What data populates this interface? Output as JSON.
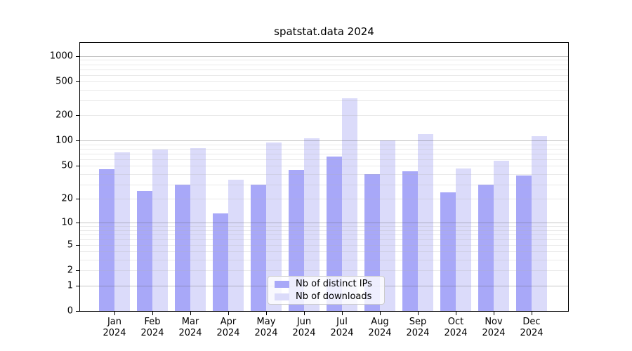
{
  "title": "spatstat.data 2024",
  "chart_data": {
    "type": "bar",
    "title": "spatstat.data 2024",
    "y_scale": "log1p",
    "grid": true,
    "legend_position": "lower center",
    "categories": [
      "Jan",
      "Feb",
      "Mar",
      "Apr",
      "May",
      "Jun",
      "Jul",
      "Aug",
      "Sep",
      "Oct",
      "Nov",
      "Dec"
    ],
    "year": "2024",
    "x_tick_labels": [
      "Jan 2024",
      "Feb 2024",
      "Mar 2024",
      "Apr 2024",
      "May 2024",
      "Jun 2024",
      "Jul 2024",
      "Aug 2024",
      "Sep 2024",
      "Oct 2024",
      "Nov 2024",
      "Dec 2024"
    ],
    "series": [
      {
        "name": "Nb of distinct IPs",
        "color": "#a8a8f8",
        "values": [
          46,
          25,
          30,
          13,
          30,
          45,
          65,
          40,
          43,
          24,
          30,
          38
        ]
      },
      {
        "name": "Nb of downloads",
        "color": "#dbdbfa",
        "values": [
          73,
          78,
          81,
          34,
          95,
          107,
          320,
          100,
          120,
          47,
          58,
          113
        ]
      }
    ],
    "y_ticks": [
      0,
      1,
      2,
      5,
      10,
      20,
      50,
      100,
      200,
      500,
      1000
    ],
    "y_grid_major": [
      1,
      10,
      100,
      1000
    ],
    "y_grid_minor": [
      2,
      3,
      4,
      5,
      6,
      7,
      8,
      9,
      20,
      30,
      40,
      50,
      60,
      70,
      80,
      90,
      200,
      300,
      400,
      500,
      600,
      700,
      800,
      900
    ],
    "ylim": [
      0,
      1430
    ]
  },
  "colors": {
    "bar_distinct_ips": "#a8a8f8",
    "bar_downloads": "#dbdbfa",
    "grid_major": "#c6c6c6",
    "grid_minor": "#e7e7e7",
    "axis": "#000000"
  }
}
